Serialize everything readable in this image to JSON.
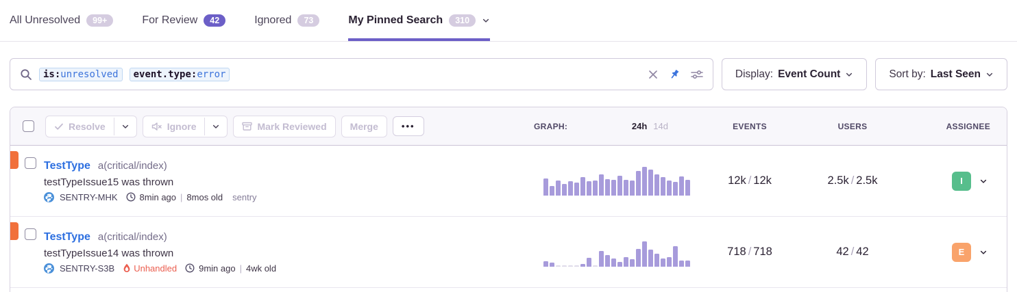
{
  "tabs": [
    {
      "label": "All Unresolved",
      "badge": "99+",
      "style": "muted"
    },
    {
      "label": "For Review",
      "badge": "42",
      "style": "purple"
    },
    {
      "label": "Ignored",
      "badge": "73",
      "style": "muted"
    },
    {
      "label": "My Pinned Search",
      "badge": "310",
      "style": "muted"
    }
  ],
  "search": {
    "tokens": [
      {
        "key": "is:",
        "value": "unresolved"
      },
      {
        "key": "event.type:",
        "value": "error"
      }
    ],
    "icons": {
      "left": "magnifier",
      "clear": "x",
      "pin": "pushpin-active",
      "settings": "sliders"
    }
  },
  "display_dropdown": {
    "label": "Display:",
    "value": "Event Count"
  },
  "sort_dropdown": {
    "label": "Sort by:",
    "value": "Last Seen"
  },
  "toolbar": {
    "resolve_label": "Resolve",
    "ignore_label": "Ignore",
    "mark_reviewed_label": "Mark Reviewed",
    "merge_label": "Merge",
    "more_label": "•••"
  },
  "table_header": {
    "graph_label": "GRAPH:",
    "range_24h": "24h",
    "range_14d": "14d",
    "events_label": "EVENTS",
    "users_label": "USERS",
    "assignee_label": "ASSIGNEE"
  },
  "misc": {
    "time_divider": "|",
    "slash": "/"
  },
  "colors": {
    "accent_purple": "#6c5fc7",
    "link_blue": "#2d6fe0",
    "graph_bar": "#a79bdb",
    "level_error_orange": "#f1703b",
    "unhandled_red": "#eb5e4f",
    "pin_blue": "#3c74dd",
    "badge_muted": "#d5cce0",
    "token_value_blue": "#3d74db"
  },
  "rows": [
    {
      "title": "TestType",
      "annotation": "a(critical/index)",
      "message": "testTypeIssue15 was thrown",
      "short_id": "SENTRY-MHK",
      "unhandled": null,
      "age": "8min ago",
      "created": "8mos old",
      "tag": "sentry",
      "events_count": "12k",
      "events_total": "12k",
      "users_count": "2.5k",
      "users_total": "2.5k",
      "assignee_initial": "I",
      "assignee_color": "#57be8c",
      "graph_values": [
        52,
        30,
        46,
        36,
        44,
        40,
        56,
        44,
        46,
        64,
        50,
        47,
        60,
        48,
        46,
        74,
        88,
        80,
        64,
        56,
        46,
        42,
        58,
        48
      ]
    },
    {
      "title": "TestType",
      "annotation": "a(critical/index)",
      "message": "testTypeIssue14 was thrown",
      "short_id": "SENTRY-S3B",
      "unhandled": "Unhandled",
      "age": "9min ago",
      "created": "4wk old",
      "tag": null,
      "events_count": "718",
      "events_total": "718",
      "users_count": "42",
      "users_total": "42",
      "assignee_initial": "E",
      "assignee_color": "#f9a36b",
      "graph_values": [
        16,
        13,
        2,
        2,
        2,
        2,
        9,
        28,
        2,
        48,
        36,
        26,
        14,
        30,
        22,
        55,
        78,
        52,
        40,
        24,
        30,
        62,
        18,
        18
      ]
    }
  ]
}
